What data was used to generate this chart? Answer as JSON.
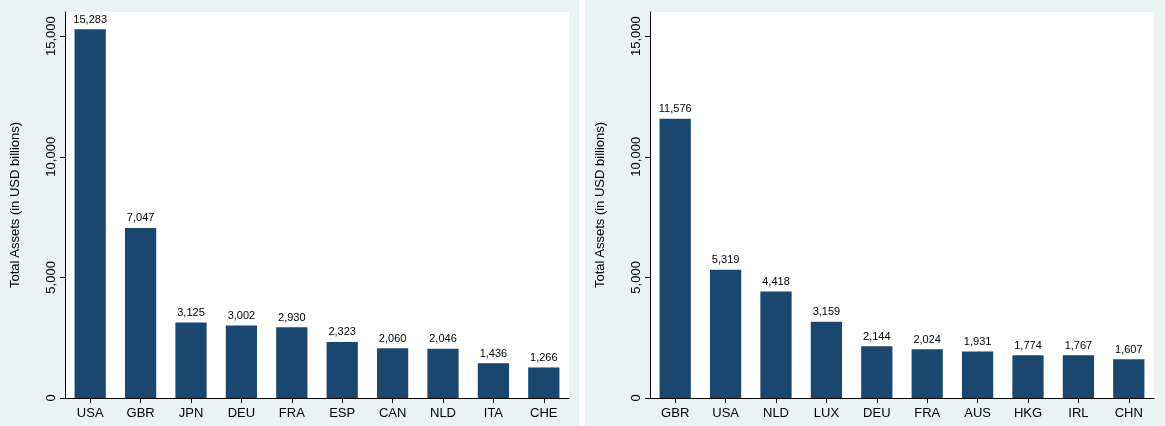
{
  "chart_data": [
    {
      "type": "bar",
      "ylabel": "Total Assets (in USD billions)",
      "categories": [
        "USA",
        "GBR",
        "JPN",
        "DEU",
        "FRA",
        "ESP",
        "CAN",
        "NLD",
        "ITA",
        "CHE"
      ],
      "values": [
        15283,
        7047,
        3125,
        3002,
        2930,
        2323,
        2060,
        2046,
        1436,
        1266
      ],
      "color": "#1a476f",
      "ylim": [
        0,
        16000
      ],
      "yticks": [
        0,
        {
          "value": 5000,
          "label": "5,000"
        },
        {
          "value": 10000,
          "label": "10,000"
        },
        {
          "value": 15000,
          "label": "15,000"
        }
      ],
      "grid": false,
      "value_labels": [
        "15,283",
        "7,047",
        "3,125",
        "3,002",
        "2,930",
        "2,323",
        "2,060",
        "2,046",
        "1,436",
        "1,266"
      ]
    },
    {
      "type": "bar",
      "ylabel": "Total Assets (in USD billions)",
      "categories": [
        "GBR",
        "USA",
        "NLD",
        "LUX",
        "DEU",
        "FRA",
        "AUS",
        "HKG",
        "IRL",
        "CHN"
      ],
      "values": [
        11576,
        5319,
        4418,
        3159,
        2144,
        2024,
        1931,
        1774,
        1767,
        1607
      ],
      "color": "#1a476f",
      "ylim": [
        0,
        16000
      ],
      "yticks": [
        0,
        {
          "value": 5000,
          "label": "5,000"
        },
        {
          "value": 10000,
          "label": "10,000"
        },
        {
          "value": 15000,
          "label": "15,000"
        }
      ],
      "grid": false,
      "value_labels": [
        "11,576",
        "5,319",
        "4,418",
        "3,159",
        "2,144",
        "2,024",
        "1,931",
        "1,774",
        "1,767",
        "1,607"
      ]
    }
  ]
}
